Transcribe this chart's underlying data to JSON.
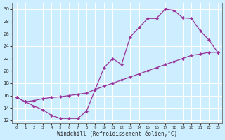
{
  "xlabel": "Windchill (Refroidissement éolien,°C)",
  "bg_color": "#cceeff",
  "grid_color": "#ffffff",
  "line_color": "#993399",
  "upper_x": [
    0,
    1,
    2,
    3,
    4,
    5,
    6,
    7,
    8,
    9,
    10,
    11,
    12,
    13,
    14,
    15,
    16,
    17,
    18,
    19,
    20,
    21,
    22,
    23
  ],
  "upper_y": [
    15.7,
    15.0,
    14.3,
    13.7,
    12.8,
    12.3,
    12.3,
    12.3,
    13.5,
    17.0,
    20.5,
    22.0,
    21.0,
    25.5,
    27.0,
    28.5,
    28.5,
    30.0,
    29.8,
    28.6,
    28.5,
    26.5,
    25.0,
    23.0
  ],
  "lower_x": [
    0,
    1,
    2,
    3,
    4,
    5,
    6,
    7,
    8,
    9,
    10,
    11,
    12,
    13,
    14,
    15,
    16,
    17,
    18,
    19,
    20,
    21,
    22,
    23
  ],
  "lower_y": [
    15.7,
    15.0,
    15.2,
    15.5,
    15.7,
    15.8,
    16.0,
    16.2,
    16.4,
    17.0,
    17.5,
    18.0,
    18.5,
    19.0,
    19.5,
    20.0,
    20.5,
    21.0,
    21.5,
    22.0,
    22.5,
    22.7,
    23.0,
    23.0
  ],
  "ylim": [
    11.5,
    31
  ],
  "xlim": [
    -0.5,
    23.5
  ],
  "yticks": [
    12,
    14,
    16,
    18,
    20,
    22,
    24,
    26,
    28,
    30
  ],
  "xticks": [
    0,
    1,
    2,
    3,
    4,
    5,
    6,
    7,
    8,
    9,
    10,
    11,
    12,
    13,
    14,
    15,
    16,
    17,
    18,
    19,
    20,
    21,
    22,
    23
  ]
}
